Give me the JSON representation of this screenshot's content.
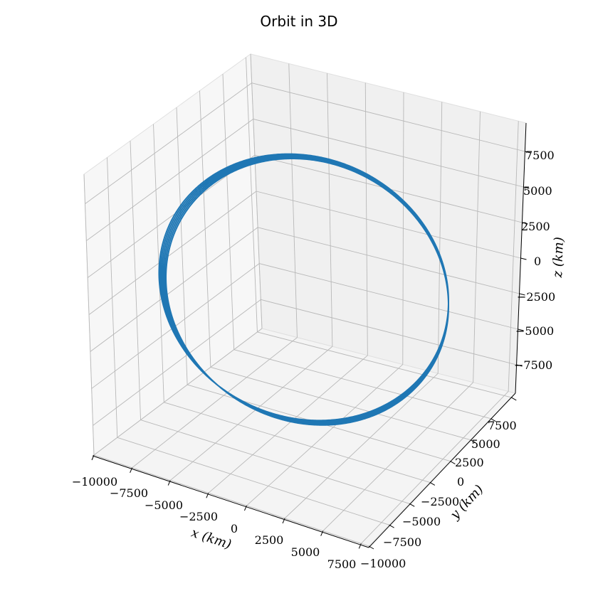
{
  "chart_data": {
    "type": "line",
    "projection": "3d",
    "title": "Orbit in 3D",
    "xlabel": "x (km)",
    "ylabel": "y (km)",
    "zlabel": "z (km)",
    "xlim": [
      -10000,
      8000
    ],
    "ylim": [
      -10000,
      8000
    ],
    "zlim": [
      -9500,
      9500
    ],
    "x_ticks": [
      "−10000",
      "−7500",
      "−5000",
      "−2500",
      "0",
      "2500",
      "5000",
      "7500"
    ],
    "y_ticks": [
      "−10000",
      "−7500",
      "−5000",
      "−2500",
      "0",
      "2500",
      "5000",
      "7500"
    ],
    "z_ticks": [
      "−7500",
      "−5000",
      "−2500",
      "0",
      "2500",
      "5000",
      "7500"
    ],
    "grid": true,
    "series": [
      {
        "color": "#1f77b4",
        "orbit": {
          "radius_km": 8000,
          "center_km": [
            0,
            0,
            0
          ],
          "revolutions": 6,
          "drift_km_per_rev": 40
        }
      }
    ]
  }
}
